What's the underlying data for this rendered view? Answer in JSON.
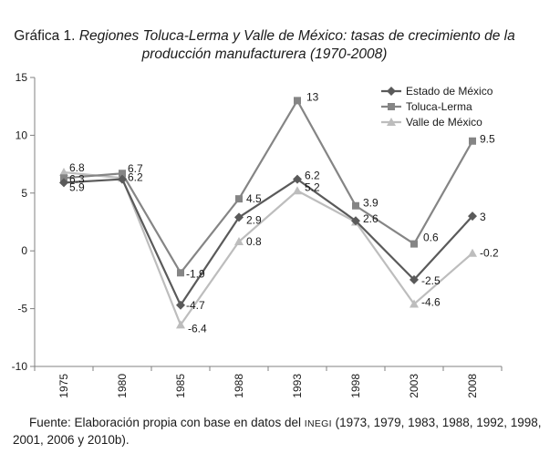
{
  "title": {
    "lead": "Gráfica 1.",
    "italic_line1": "Regiones Toluca-Lerma y Valle de México: tasas de crecimiento de la",
    "italic_line2": "producción manufacturera (1970-2008)"
  },
  "source": {
    "prefix": "Fuente: Elaboración propia con base en datos del",
    "inegi": "INEGI",
    "line1_rest": "(1973, 1979, 1983, 1988, 1992, 1998,",
    "line2": "2001, 2006 y 2010b)."
  },
  "chart_data": {
    "type": "line",
    "x": [
      "1975",
      "1980",
      "1985",
      "1988",
      "1993",
      "1998",
      "2003",
      "2008"
    ],
    "ylim": [
      -10,
      15
    ],
    "yticks": [
      -10,
      -5,
      0,
      5,
      10,
      15
    ],
    "grid": false,
    "legend_position": "top-right",
    "series": [
      {
        "name": "Estado de México",
        "marker": "diamond",
        "color": "#5a5a5a",
        "values": [
          5.9,
          6.2,
          -4.7,
          2.9,
          6.2,
          2.6,
          -2.5,
          3
        ],
        "labels": [
          "5.9",
          "6.2",
          "-4.7",
          "2.9",
          "6.2",
          "2.6",
          "-2.5",
          "3"
        ]
      },
      {
        "name": "Toluca-Lerma",
        "marker": "square",
        "color": "#858585",
        "values": [
          6.3,
          6.7,
          -1.9,
          4.5,
          13,
          3.9,
          0.6,
          9.5
        ],
        "labels": [
          "6.3",
          "6.7",
          "-1.9",
          "4.5",
          "13",
          "3.9",
          "0.6",
          "9.5"
        ]
      },
      {
        "name": "Valle de México",
        "marker": "triangle",
        "color": "#bdbdbd",
        "values": [
          6.8,
          6.3,
          -6.4,
          0.8,
          5.2,
          2.5,
          -4.6,
          -0.2
        ],
        "labels": [
          "6.8",
          "",
          "-6.4",
          "0.8",
          "5.2",
          "",
          "-4.6",
          "-0.2"
        ]
      }
    ]
  }
}
